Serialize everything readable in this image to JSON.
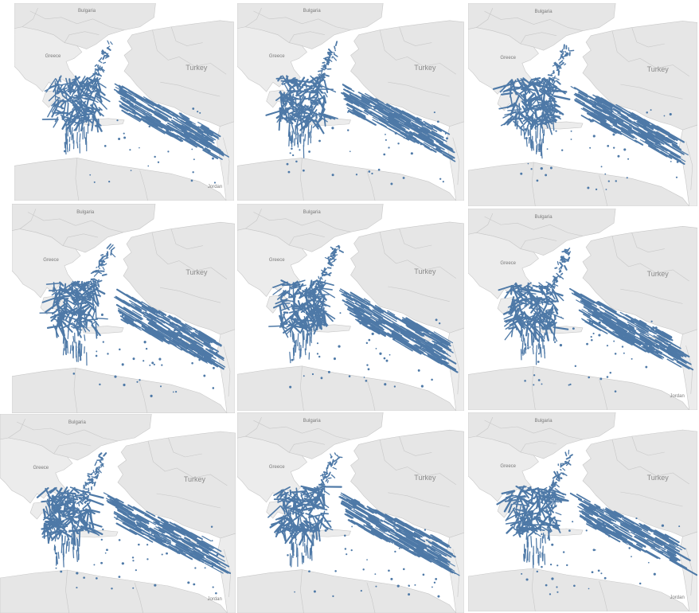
{
  "labels": {
    "bulgaria": "Bulgaria",
    "greece": "Greece",
    "turkey": "Turkey",
    "jordan": "Jordan"
  },
  "colors": {
    "sea": "#ffffff",
    "land": "#e6e6e6",
    "land_alt": "#ececec",
    "border": "#c8c8c8",
    "tracks": "#4e79a7"
  },
  "panels": [
    {
      "show_jordan": true
    },
    {
      "show_jordan": false
    },
    {
      "show_jordan": false
    },
    {
      "show_jordan": false
    },
    {
      "show_jordan": false
    },
    {
      "show_jordan": true
    },
    {
      "show_jordan": true
    },
    {
      "show_jordan": false
    },
    {
      "show_jordan": true
    }
  ]
}
